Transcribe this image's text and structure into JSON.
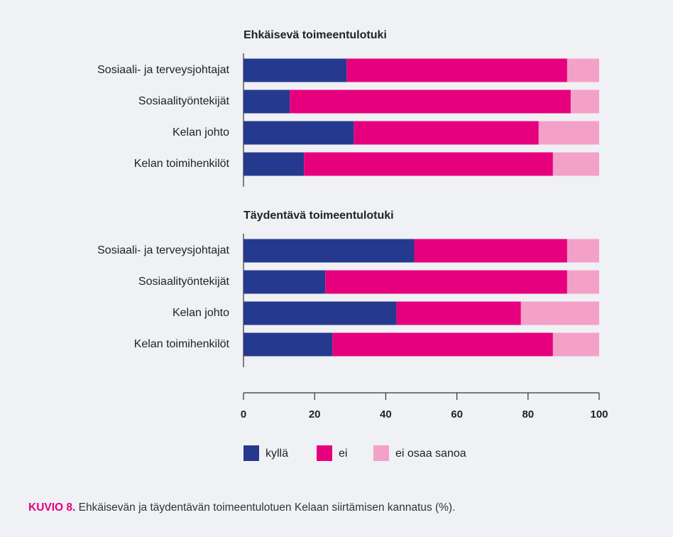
{
  "chart_data": {
    "type": "bar",
    "orientation": "horizontal",
    "stacked": true,
    "legend": [
      {
        "name": "kyllä",
        "color": "#253a8e"
      },
      {
        "name": "ei",
        "color": "#e6007e"
      },
      {
        "name": "ei osaa sanoa",
        "color": "#f4a1c9"
      }
    ],
    "panels": [
      {
        "title": "Ehkäisevä toimeentulotuki",
        "categories": [
          "Sosiaali- ja terveysjohtajat",
          "Sosiaalityöntekijät",
          "Kelan johto",
          "Kelan toimihenkilöt"
        ],
        "series": [
          {
            "values": [
              29,
              13,
              31,
              17
            ]
          },
          {
            "values": [
              62,
              79,
              52,
              70
            ]
          },
          {
            "values": [
              9,
              8,
              17,
              13
            ]
          }
        ]
      },
      {
        "title": "Täydentävä toimeentulotuki",
        "categories": [
          "Sosiaali- ja terveysjohtajat",
          "Sosiaalityöntekijät",
          "Kelan johto",
          "Kelan toimihenkilöt"
        ],
        "series": [
          {
            "values": [
              48,
              23,
              43,
              25
            ]
          },
          {
            "values": [
              43,
              68,
              35,
              62
            ]
          },
          {
            "values": [
              9,
              9,
              22,
              13
            ]
          }
        ]
      }
    ],
    "xlim": [
      0,
      100
    ],
    "xticks": [
      0,
      20,
      40,
      60,
      80,
      100
    ],
    "caption": {
      "label": "KUVIO 8.",
      "text": "Ehkäisevän ja täydentävän toimeentulotuen Kelaan siirtämisen kannatus (%)."
    }
  }
}
